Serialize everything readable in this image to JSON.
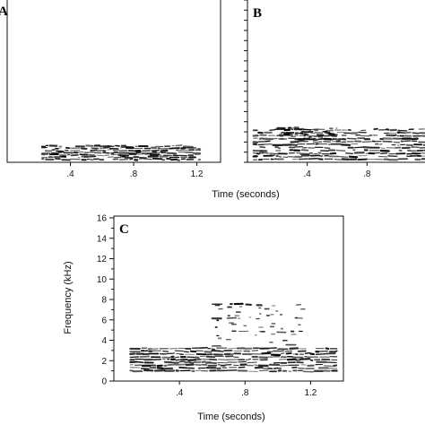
{
  "chart_data": [
    {
      "type": "heatmap",
      "panel_label": "A",
      "xlabel": "",
      "ylabel": "",
      "x_ticks": [
        ".4",
        ".8",
        "1.2"
      ],
      "x_tick_values": [
        0.4,
        0.8,
        1.2
      ],
      "xlim": [
        0.0,
        1.35
      ],
      "ylim": [
        0,
        16
      ],
      "y_ticks": [],
      "grid": false,
      "energy_bands": [
        {
          "t_start": 0.22,
          "t_end": 1.22,
          "f_low": 0.3,
          "f_high": 1.6,
          "lines": 7,
          "intensity": 0.9
        }
      ]
    },
    {
      "type": "heatmap",
      "panel_label": "B",
      "xlabel": "Time (seconds)",
      "ylabel": "",
      "x_ticks": [
        ".4",
        ".8"
      ],
      "x_tick_values": [
        0.4,
        0.8
      ],
      "xlim": [
        0.0,
        1.2
      ],
      "ylim": [
        0,
        16
      ],
      "y_ticks": [],
      "grid": false,
      "energy_bands": [
        {
          "t_start": 0.04,
          "t_end": 1.2,
          "f_low": 0.3,
          "f_high": 3.2,
          "lines": 11,
          "intensity": 0.85
        },
        {
          "t_start": 0.2,
          "t_end": 0.6,
          "f_low": 2.2,
          "f_high": 3.4,
          "lines": 3,
          "intensity": 0.6
        }
      ]
    },
    {
      "type": "heatmap",
      "panel_label": "C",
      "xlabel": "Time (seconds)",
      "ylabel": "Frequency (kHz)",
      "x_ticks": [
        ".4",
        ".8",
        "1.2"
      ],
      "x_tick_values": [
        0.4,
        0.8,
        1.2
      ],
      "xlim": [
        0.0,
        1.4
      ],
      "y_ticks": [
        "0",
        "2",
        "4",
        "6",
        "8",
        "10",
        "12",
        "14",
        "16"
      ],
      "y_tick_values": [
        0,
        2,
        4,
        6,
        8,
        10,
        12,
        14,
        16
      ],
      "ylim": [
        0,
        16
      ],
      "grid": false,
      "energy_bands": [
        {
          "t_start": 0.1,
          "t_end": 1.36,
          "f_low": 1.0,
          "f_high": 3.2,
          "lines": 9,
          "intensity": 0.95
        },
        {
          "t_start": 0.6,
          "t_end": 1.15,
          "f_low": 3.5,
          "f_high": 7.5,
          "lines": 4,
          "intensity": 0.35
        }
      ]
    }
  ]
}
